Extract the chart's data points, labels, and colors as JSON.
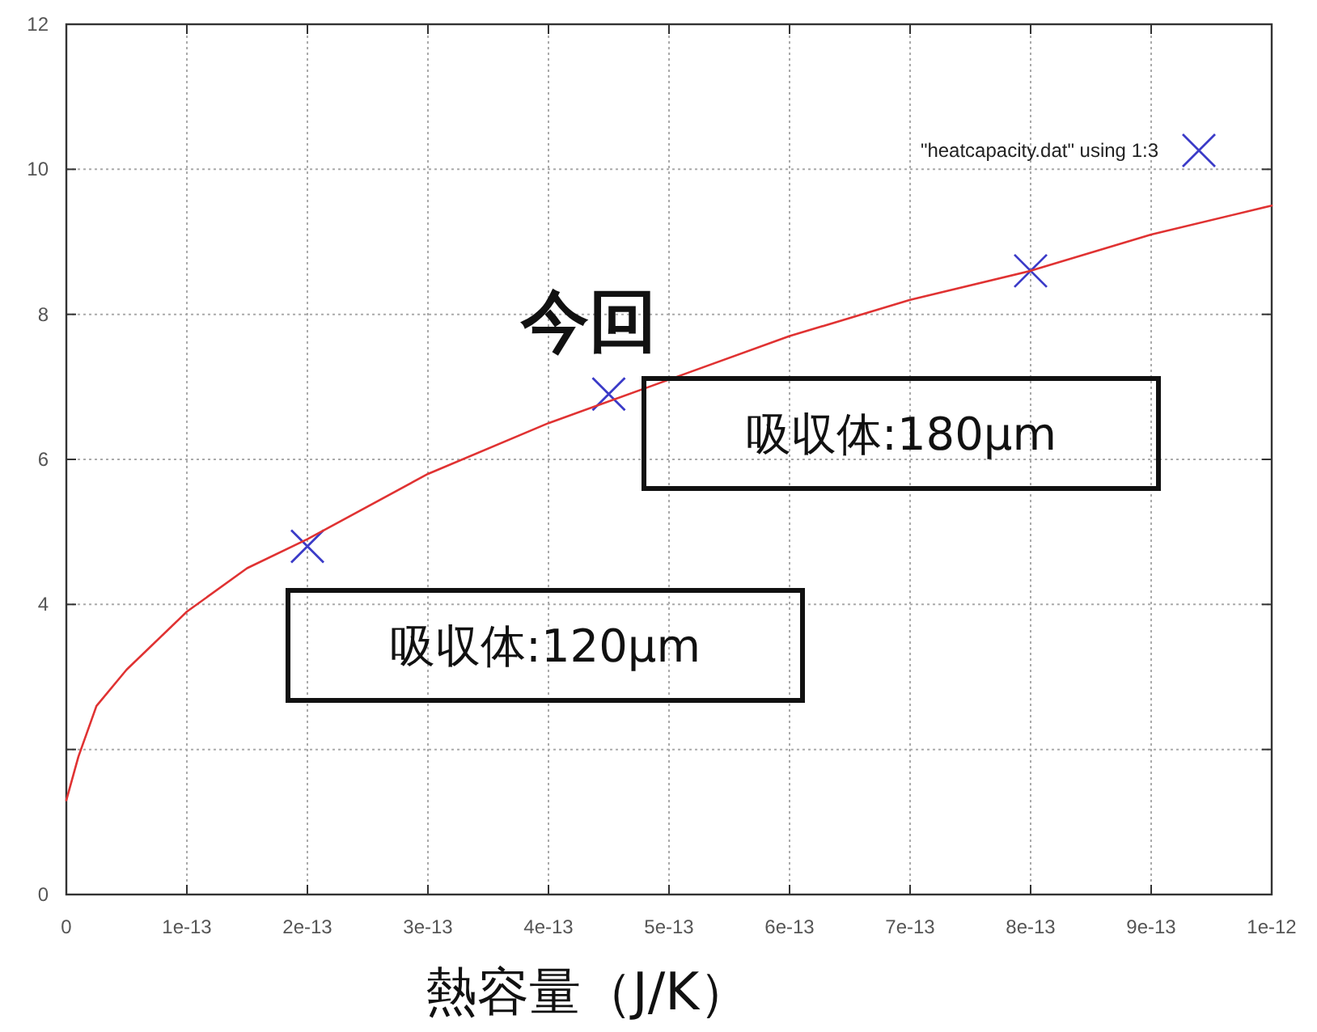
{
  "chart_data": {
    "type": "scatter",
    "xlabel": "熱容量（J/K）",
    "xlim": [
      0,
      1e-12
    ],
    "xticks": [
      0,
      1e-13,
      2e-13,
      3e-13,
      4e-13,
      5e-13,
      6e-13,
      7e-13,
      8e-13,
      9e-13,
      1e-12
    ],
    "ylim": [
      0,
      12
    ],
    "yticks": [
      0,
      {
        "value": 2,
        "label": null
      },
      4,
      6,
      8,
      10,
      12
    ],
    "grid": true,
    "legend": "top right",
    "series": [
      {
        "name": "\"heatcapacity.dat\" using 1:3",
        "marker": "cross",
        "color": "#3b3bc8",
        "x": [
          2e-13,
          4.5e-13,
          8e-13
        ],
        "values": [
          4.8,
          6.9,
          8.6
        ]
      },
      {
        "type": "line",
        "color": "#e03232",
        "x": [
          0,
          1e-14,
          2.5e-14,
          5e-14,
          1e-13,
          1.5e-13,
          2e-13,
          3e-13,
          4e-13,
          5e-13,
          6e-13,
          7e-13,
          8e-13,
          9e-13,
          1e-12
        ],
        "values": [
          1.3,
          1.9,
          2.6,
          3.1,
          3.9,
          4.5,
          4.9,
          5.8,
          6.5,
          7.1,
          7.7,
          8.2,
          8.6,
          9.1,
          9.5
        ]
      }
    ],
    "annotations": [
      "今回",
      "吸収体:180μm",
      "吸収体:120μm"
    ]
  }
}
